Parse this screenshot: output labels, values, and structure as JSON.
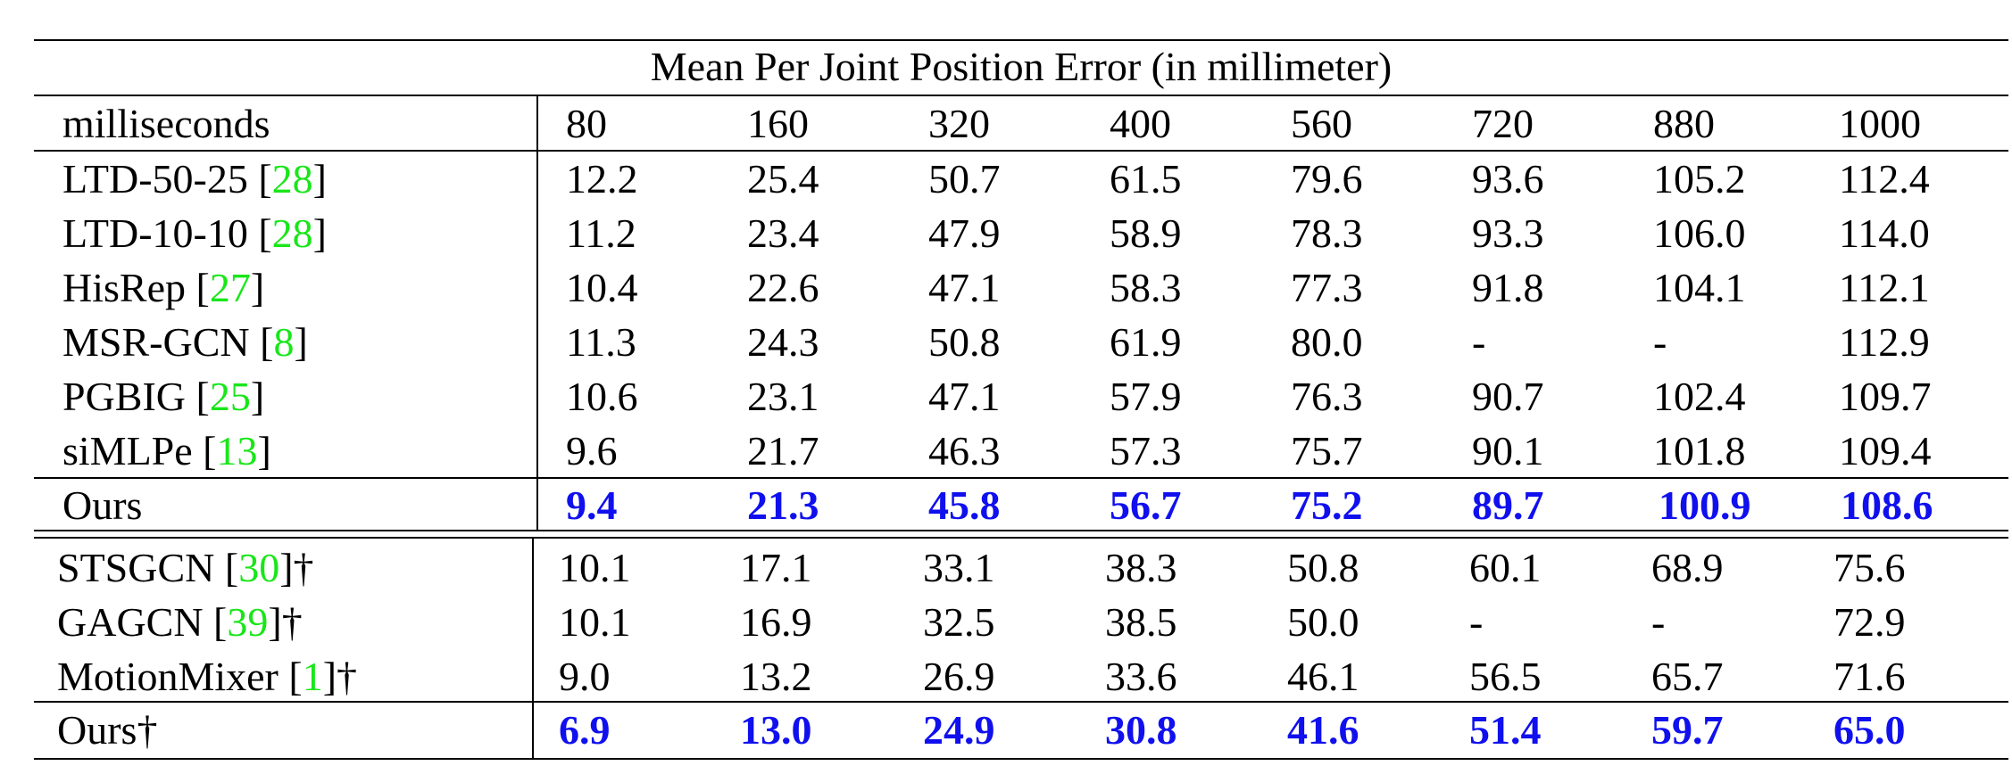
{
  "title": "Mean Per Joint Position Error (in millimeter)",
  "header": {
    "label": "milliseconds",
    "cols": [
      "80",
      "160",
      "320",
      "400",
      "560",
      "720",
      "880",
      "1000"
    ]
  },
  "section1": [
    {
      "name": "LTD-50-25 [",
      "cite": "28",
      "suffix": "]",
      "values": [
        "12.2",
        "25.4",
        "50.7",
        "61.5",
        "79.6",
        "93.6",
        "105.2",
        "112.4"
      ]
    },
    {
      "name": "LTD-10-10 [",
      "cite": "28",
      "suffix": "]",
      "values": [
        "11.2",
        "23.4",
        "47.9",
        "58.9",
        "78.3",
        "93.3",
        "106.0",
        "114.0"
      ]
    },
    {
      "name": "HisRep [",
      "cite": "27",
      "suffix": "]",
      "values": [
        "10.4",
        "22.6",
        "47.1",
        "58.3",
        "77.3",
        "91.8",
        "104.1",
        "112.1"
      ]
    },
    {
      "name": "MSR-GCN [",
      "cite": "8",
      "suffix": "]",
      "values": [
        "11.3",
        "24.3",
        "50.8",
        "61.9",
        "80.0",
        "-",
        "-",
        "112.9"
      ]
    },
    {
      "name": "PGBIG [",
      "cite": "25",
      "suffix": "]",
      "values": [
        "10.6",
        "23.1",
        "47.1",
        "57.9",
        "76.3",
        "90.7",
        "102.4",
        "109.7"
      ]
    },
    {
      "name": "siMLPe [",
      "cite": "13",
      "suffix": "]",
      "values": [
        "9.6",
        "21.7",
        "46.3",
        "57.3",
        "75.7",
        "90.1",
        "101.8",
        "109.4"
      ]
    }
  ],
  "ours1": {
    "name": "Ours",
    "values": [
      "9.4",
      "21.3",
      "45.8",
      "56.7",
      "75.2",
      "89.7",
      "100.9",
      "108.6"
    ]
  },
  "section2": [
    {
      "name": "STSGCN [",
      "cite": "30",
      "suffix": "]†",
      "values": [
        "10.1",
        "17.1",
        "33.1",
        "38.3",
        "50.8",
        "60.1",
        "68.9",
        "75.6"
      ]
    },
    {
      "name": "GAGCN [",
      "cite": "39",
      "suffix": "]†",
      "values": [
        "10.1",
        "16.9",
        "32.5",
        "38.5",
        "50.0",
        "-",
        "-",
        "72.9"
      ]
    },
    {
      "name": "MotionMixer [",
      "cite": "1",
      "suffix": "]†",
      "values": [
        "9.0",
        "13.2",
        "26.9",
        "33.6",
        "46.1",
        "56.5",
        "65.7",
        "71.6"
      ]
    }
  ],
  "ours2": {
    "name": "Ours†",
    "values": [
      "6.9",
      "13.0",
      "24.9",
      "30.8",
      "41.6",
      "51.4",
      "59.7",
      "65.0"
    ]
  },
  "colors": {
    "best": "#1010ee",
    "citation": "#19e619",
    "text": "#000000"
  }
}
